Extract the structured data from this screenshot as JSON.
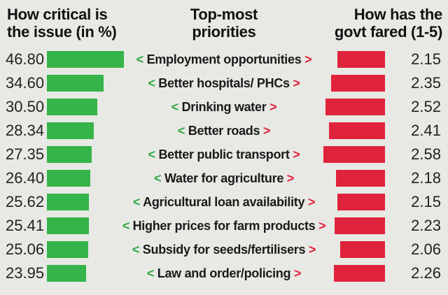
{
  "headers": {
    "left_line1": "How critical is",
    "left_line2": "the issue (in %)",
    "middle_line1": "Top-most",
    "middle_line2": "priorities",
    "right_line1": "How has the",
    "right_line2": "govt fared (1-5)"
  },
  "colors": {
    "green_bar": "#35b449",
    "red_bar": "#e0233c",
    "background": "#e8e9e4"
  },
  "chart_data": {
    "type": "table",
    "rows": [
      {
        "priority": "Employment opportunities",
        "critical": "46.80",
        "fared": "2.15"
      },
      {
        "priority": "Better hospitals/ PHCs",
        "critical": "34.60",
        "fared": "2.35"
      },
      {
        "priority": "Drinking water",
        "critical": "30.50",
        "fared": "2.52"
      },
      {
        "priority": "Better roads",
        "critical": "28.34",
        "fared": "2.41"
      },
      {
        "priority": "Better public transport",
        "critical": "27.35",
        "fared": "2.58"
      },
      {
        "priority": "Water for agriculture",
        "critical": "26.40",
        "fared": "2.18"
      },
      {
        "priority": "Agricultural loan availability",
        "critical": "25.62",
        "fared": "2.15"
      },
      {
        "priority": "Higher prices for farm products",
        "critical": "25.41",
        "fared": "2.23"
      },
      {
        "priority": "Subsidy for seeds/fertilisers",
        "critical": "25.06",
        "fared": "2.06"
      },
      {
        "priority": "Law and order/policing",
        "critical": "23.95",
        "fared": "2.26"
      }
    ]
  }
}
